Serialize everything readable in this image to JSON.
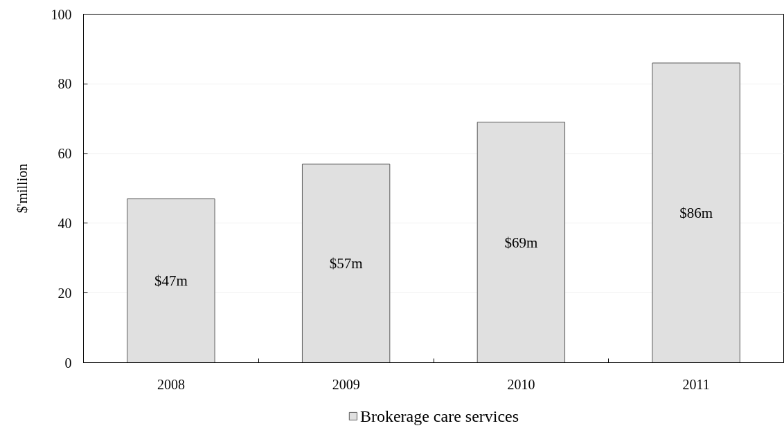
{
  "chart_data": {
    "type": "bar",
    "ylabel": "$'million",
    "categories": [
      "2008",
      "2009",
      "2010",
      "2011"
    ],
    "series": [
      {
        "name": "Brokerage care services",
        "color": "#e0e0e0",
        "values": [
          47,
          57,
          69,
          86
        ],
        "value_labels": [
          "$47m",
          "$57m",
          "$69m",
          "$86m"
        ]
      }
    ],
    "ylim": [
      0,
      100
    ],
    "yticks": [
      0,
      20,
      40,
      60,
      80,
      100
    ],
    "grid": "y",
    "legend": "bottom"
  }
}
